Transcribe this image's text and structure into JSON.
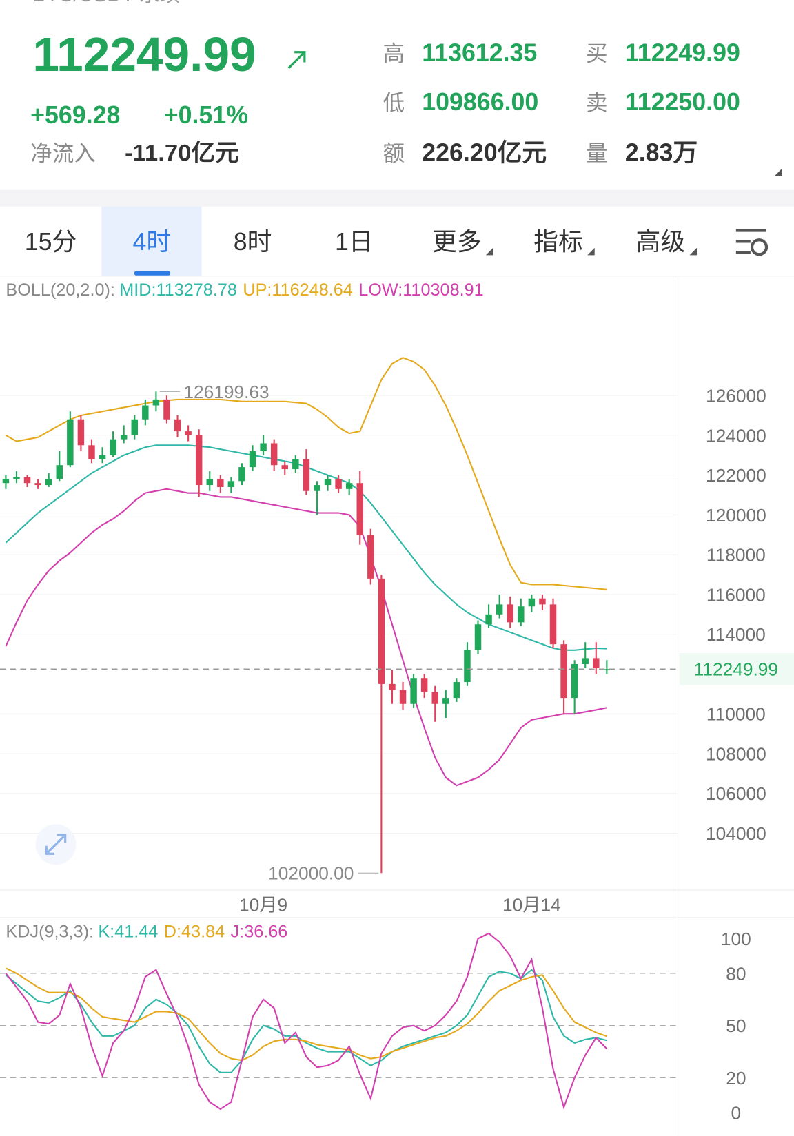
{
  "header": {
    "symbol": "BTC/USDT 永续",
    "price": "112249.99",
    "change": "+569.28",
    "change_pct": "+0.51%",
    "net_inflow_label": "净流入",
    "net_inflow": "-11.70亿元",
    "stats": [
      {
        "label": "高",
        "value": "113612.35",
        "color": "#22a55b"
      },
      {
        "label": "买",
        "value": "112249.99",
        "color": "#22a55b"
      },
      {
        "label": "低",
        "value": "109866.00",
        "color": "#22a55b"
      },
      {
        "label": "卖",
        "value": "112250.00",
        "color": "#22a55b"
      },
      {
        "label": "额",
        "value": "226.20亿元",
        "color": "#333333"
      },
      {
        "label": "量",
        "value": "2.83万",
        "color": "#333333"
      }
    ]
  },
  "tabs": {
    "items": [
      "15分",
      "4时",
      "8时",
      "1日",
      "更多",
      "指标",
      "高级"
    ],
    "active": 1
  },
  "chart": {
    "type": "candlestick",
    "indicator_label": "BOLL(20,2.0):",
    "indicator_values": [
      {
        "label": "MID:113278.78",
        "color": "#2fb8a8"
      },
      {
        "label": "UP:116248.64",
        "color": "#e4a91c"
      },
      {
        "label": "LOW:110308.91",
        "color": "#d23fae"
      }
    ],
    "up_color": "#1fa85a",
    "down_color": "#e0415a",
    "candles": [
      [
        121600,
        122000,
        121300,
        121800
      ],
      [
        121800,
        122200,
        121600,
        121900
      ],
      [
        121900,
        122000,
        121400,
        121600
      ],
      [
        121600,
        121800,
        121300,
        121500
      ],
      [
        121500,
        122100,
        121400,
        121800
      ],
      [
        121800,
        123200,
        121700,
        122500
      ],
      [
        122500,
        125200,
        122400,
        124800
      ],
      [
        124800,
        125000,
        123200,
        123500
      ],
      [
        123500,
        123800,
        122600,
        122800
      ],
      [
        122800,
        123400,
        122600,
        123000
      ],
      [
        123000,
        124200,
        122900,
        123800
      ],
      [
        123800,
        124500,
        123600,
        124000
      ],
      [
        124000,
        125000,
        123800,
        124800
      ],
      [
        124800,
        125800,
        124500,
        125500
      ],
      [
        125500,
        126199.63,
        125200,
        125800
      ],
      [
        125800,
        126000,
        124600,
        124800
      ],
      [
        124800,
        125000,
        123900,
        124200
      ],
      [
        124200,
        124500,
        123700,
        124000
      ],
      [
        124000,
        124300,
        120900,
        121500
      ],
      [
        121500,
        122200,
        121200,
        121800
      ],
      [
        121800,
        122000,
        121100,
        121400
      ],
      [
        121400,
        121900,
        121100,
        121700
      ],
      [
        121700,
        122600,
        121500,
        122400
      ],
      [
        122400,
        123500,
        122200,
        123200
      ],
      [
        123200,
        124000,
        123000,
        123600
      ],
      [
        123600,
        123800,
        122200,
        122500
      ],
      [
        122500,
        122700,
        122000,
        122300
      ],
      [
        122300,
        123000,
        122100,
        122800
      ],
      [
        122800,
        123300,
        121000,
        121200
      ],
      [
        121200,
        121700,
        120000,
        121500
      ],
      [
        121500,
        122000,
        121200,
        121800
      ],
      [
        121800,
        122000,
        121100,
        121300
      ],
      [
        121300,
        121800,
        121000,
        121600
      ],
      [
        121600,
        122200,
        118500,
        119000
      ],
      [
        119000,
        119300,
        116500,
        116800
      ],
      [
        116800,
        117000,
        102000,
        111500
      ],
      [
        111500,
        112200,
        110500,
        111200
      ],
      [
        111200,
        111600,
        110200,
        110500
      ],
      [
        110500,
        112000,
        110300,
        111800
      ],
      [
        111800,
        112000,
        110800,
        111100
      ],
      [
        111100,
        111400,
        109600,
        110500
      ],
      [
        110500,
        111200,
        109800,
        110800
      ],
      [
        110800,
        111800,
        110600,
        111600
      ],
      [
        111600,
        113600,
        111400,
        113200
      ],
      [
        113200,
        114700,
        113000,
        114500
      ],
      [
        114500,
        115500,
        114300,
        115000
      ],
      [
        115000,
        116000,
        114800,
        115500
      ],
      [
        115500,
        115900,
        114300,
        114600
      ],
      [
        114600,
        115800,
        114400,
        115400
      ],
      [
        115400,
        116000,
        115100,
        115800
      ],
      [
        115800,
        116000,
        115200,
        115500
      ],
      [
        115500,
        115800,
        113300,
        113500
      ],
      [
        113500,
        113700,
        110000,
        110800
      ],
      [
        110800,
        112700,
        110000,
        112500
      ],
      [
        112500,
        113600,
        112300,
        112800
      ],
      [
        112800,
        113600,
        112000,
        112300
      ],
      [
        112200,
        112700,
        112000,
        112249.99
      ]
    ],
    "series": [
      {
        "name": "MID",
        "color": "#2fb8a8",
        "values": [
          118600,
          119100,
          119600,
          120100,
          120500,
          120900,
          121300,
          121700,
          122100,
          122400,
          122700,
          123000,
          123200,
          123400,
          123500,
          123500,
          123500,
          123500,
          123450,
          123400,
          123300,
          123200,
          123100,
          123000,
          122900,
          122800,
          122700,
          122600,
          122400,
          122200,
          122000,
          121800,
          121600,
          121200,
          120600,
          119900,
          119200,
          118500,
          117800,
          117100,
          116500,
          116000,
          115500,
          115100,
          114800,
          114500,
          114300,
          114100,
          113900,
          113700,
          113500,
          113300,
          113200,
          113200,
          113250,
          113300,
          113278.78
        ]
      },
      {
        "name": "UP",
        "color": "#e4a91c",
        "values": [
          124000,
          123700,
          123800,
          123900,
          124200,
          124500,
          124800,
          125000,
          125100,
          125200,
          125300,
          125400,
          125500,
          125600,
          125700,
          125750,
          125800,
          125800,
          125800,
          125800,
          125800,
          125750,
          125700,
          125700,
          125700,
          125700,
          125700,
          125650,
          125600,
          125300,
          124900,
          124400,
          124100,
          124200,
          125500,
          126800,
          127600,
          127900,
          127700,
          127300,
          126500,
          125500,
          124300,
          123000,
          121600,
          120200,
          118800,
          117500,
          116600,
          116500,
          116500,
          116500,
          116450,
          116400,
          116350,
          116300,
          116248.64
        ]
      },
      {
        "name": "LOW",
        "color": "#d23fae",
        "values": [
          113400,
          114600,
          115700,
          116500,
          117200,
          117700,
          118100,
          118600,
          119100,
          119500,
          119800,
          120200,
          120700,
          121100,
          121200,
          121300,
          121200,
          121100,
          121100,
          121000,
          120900,
          120900,
          120800,
          120700,
          120600,
          120500,
          120400,
          120300,
          120200,
          120100,
          120100,
          120100,
          120000,
          119400,
          117900,
          116300,
          114500,
          112700,
          110900,
          109300,
          107800,
          106800,
          106400,
          106600,
          106800,
          107200,
          107700,
          108500,
          109300,
          109700,
          109800,
          109900,
          110000,
          110000,
          110100,
          110200,
          110308.91
        ]
      }
    ],
    "ylim": [
      101000,
      132000
    ],
    "yticks": [
      104000,
      106000,
      108000,
      110000,
      114000,
      116000,
      118000,
      120000,
      122000,
      124000,
      126000
    ],
    "grid": true,
    "price_line": 112249.99,
    "max_candle": 14,
    "min_candle": 35,
    "min_label": "102000.00",
    "x_labels": [
      {
        "index": 24,
        "label": "10月9"
      },
      {
        "index": 49,
        "label": "10月14"
      }
    ]
  },
  "kdj": {
    "type": "line",
    "indicator_label": "KDJ(9,3,3):",
    "indicator_values": [
      {
        "label": "K:41.44",
        "color": "#2fb8a8"
      },
      {
        "label": "D:43.84",
        "color": "#e4a91c"
      },
      {
        "label": "J:36.66",
        "color": "#d23fae"
      }
    ],
    "series": [
      {
        "name": "K",
        "color": "#2fb8a8",
        "values": [
          79,
          74,
          69,
          64,
          63,
          66,
          70,
          62,
          52,
          44,
          44,
          47,
          50,
          60,
          65,
          62,
          57,
          50,
          38,
          28,
          23,
          23,
          30,
          42,
          50,
          48,
          44,
          44,
          40,
          37,
          35,
          35,
          35,
          31,
          27,
          30,
          35,
          38,
          40,
          42,
          44,
          46,
          50,
          56,
          67,
          78,
          81,
          80,
          77,
          82,
          76,
          55,
          44,
          40,
          42,
          43,
          41.44
        ]
      },
      {
        "name": "D",
        "color": "#e4a91c",
        "values": [
          83,
          80,
          76,
          72,
          69,
          69,
          69,
          66,
          60,
          55,
          54,
          53,
          52,
          55,
          58,
          58,
          57,
          54,
          47,
          40,
          34,
          31,
          30,
          33,
          38,
          41,
          42,
          42,
          41,
          39,
          38,
          37,
          36,
          33,
          31,
          32,
          35,
          37,
          39,
          41,
          43,
          44,
          47,
          51,
          57,
          64,
          70,
          73,
          76,
          78,
          79,
          70,
          60,
          52,
          49,
          46,
          43.84
        ]
      },
      {
        "name": "J",
        "color": "#d23fae",
        "values": [
          80,
          72,
          64,
          52,
          51,
          56,
          74,
          60,
          38,
          21,
          40,
          47,
          60,
          78,
          82,
          68,
          55,
          38,
          16,
          6,
          2,
          6,
          30,
          55,
          65,
          60,
          40,
          46,
          32,
          26,
          27,
          30,
          38,
          22,
          8,
          34,
          44,
          49,
          50,
          47,
          50,
          56,
          64,
          78,
          100,
          103,
          98,
          90,
          77,
          88,
          60,
          25,
          3,
          20,
          33,
          43,
          36.66
        ]
      }
    ],
    "ylim": [
      -10,
      111
    ],
    "yticks": [
      0,
      20,
      50,
      80,
      100
    ]
  }
}
